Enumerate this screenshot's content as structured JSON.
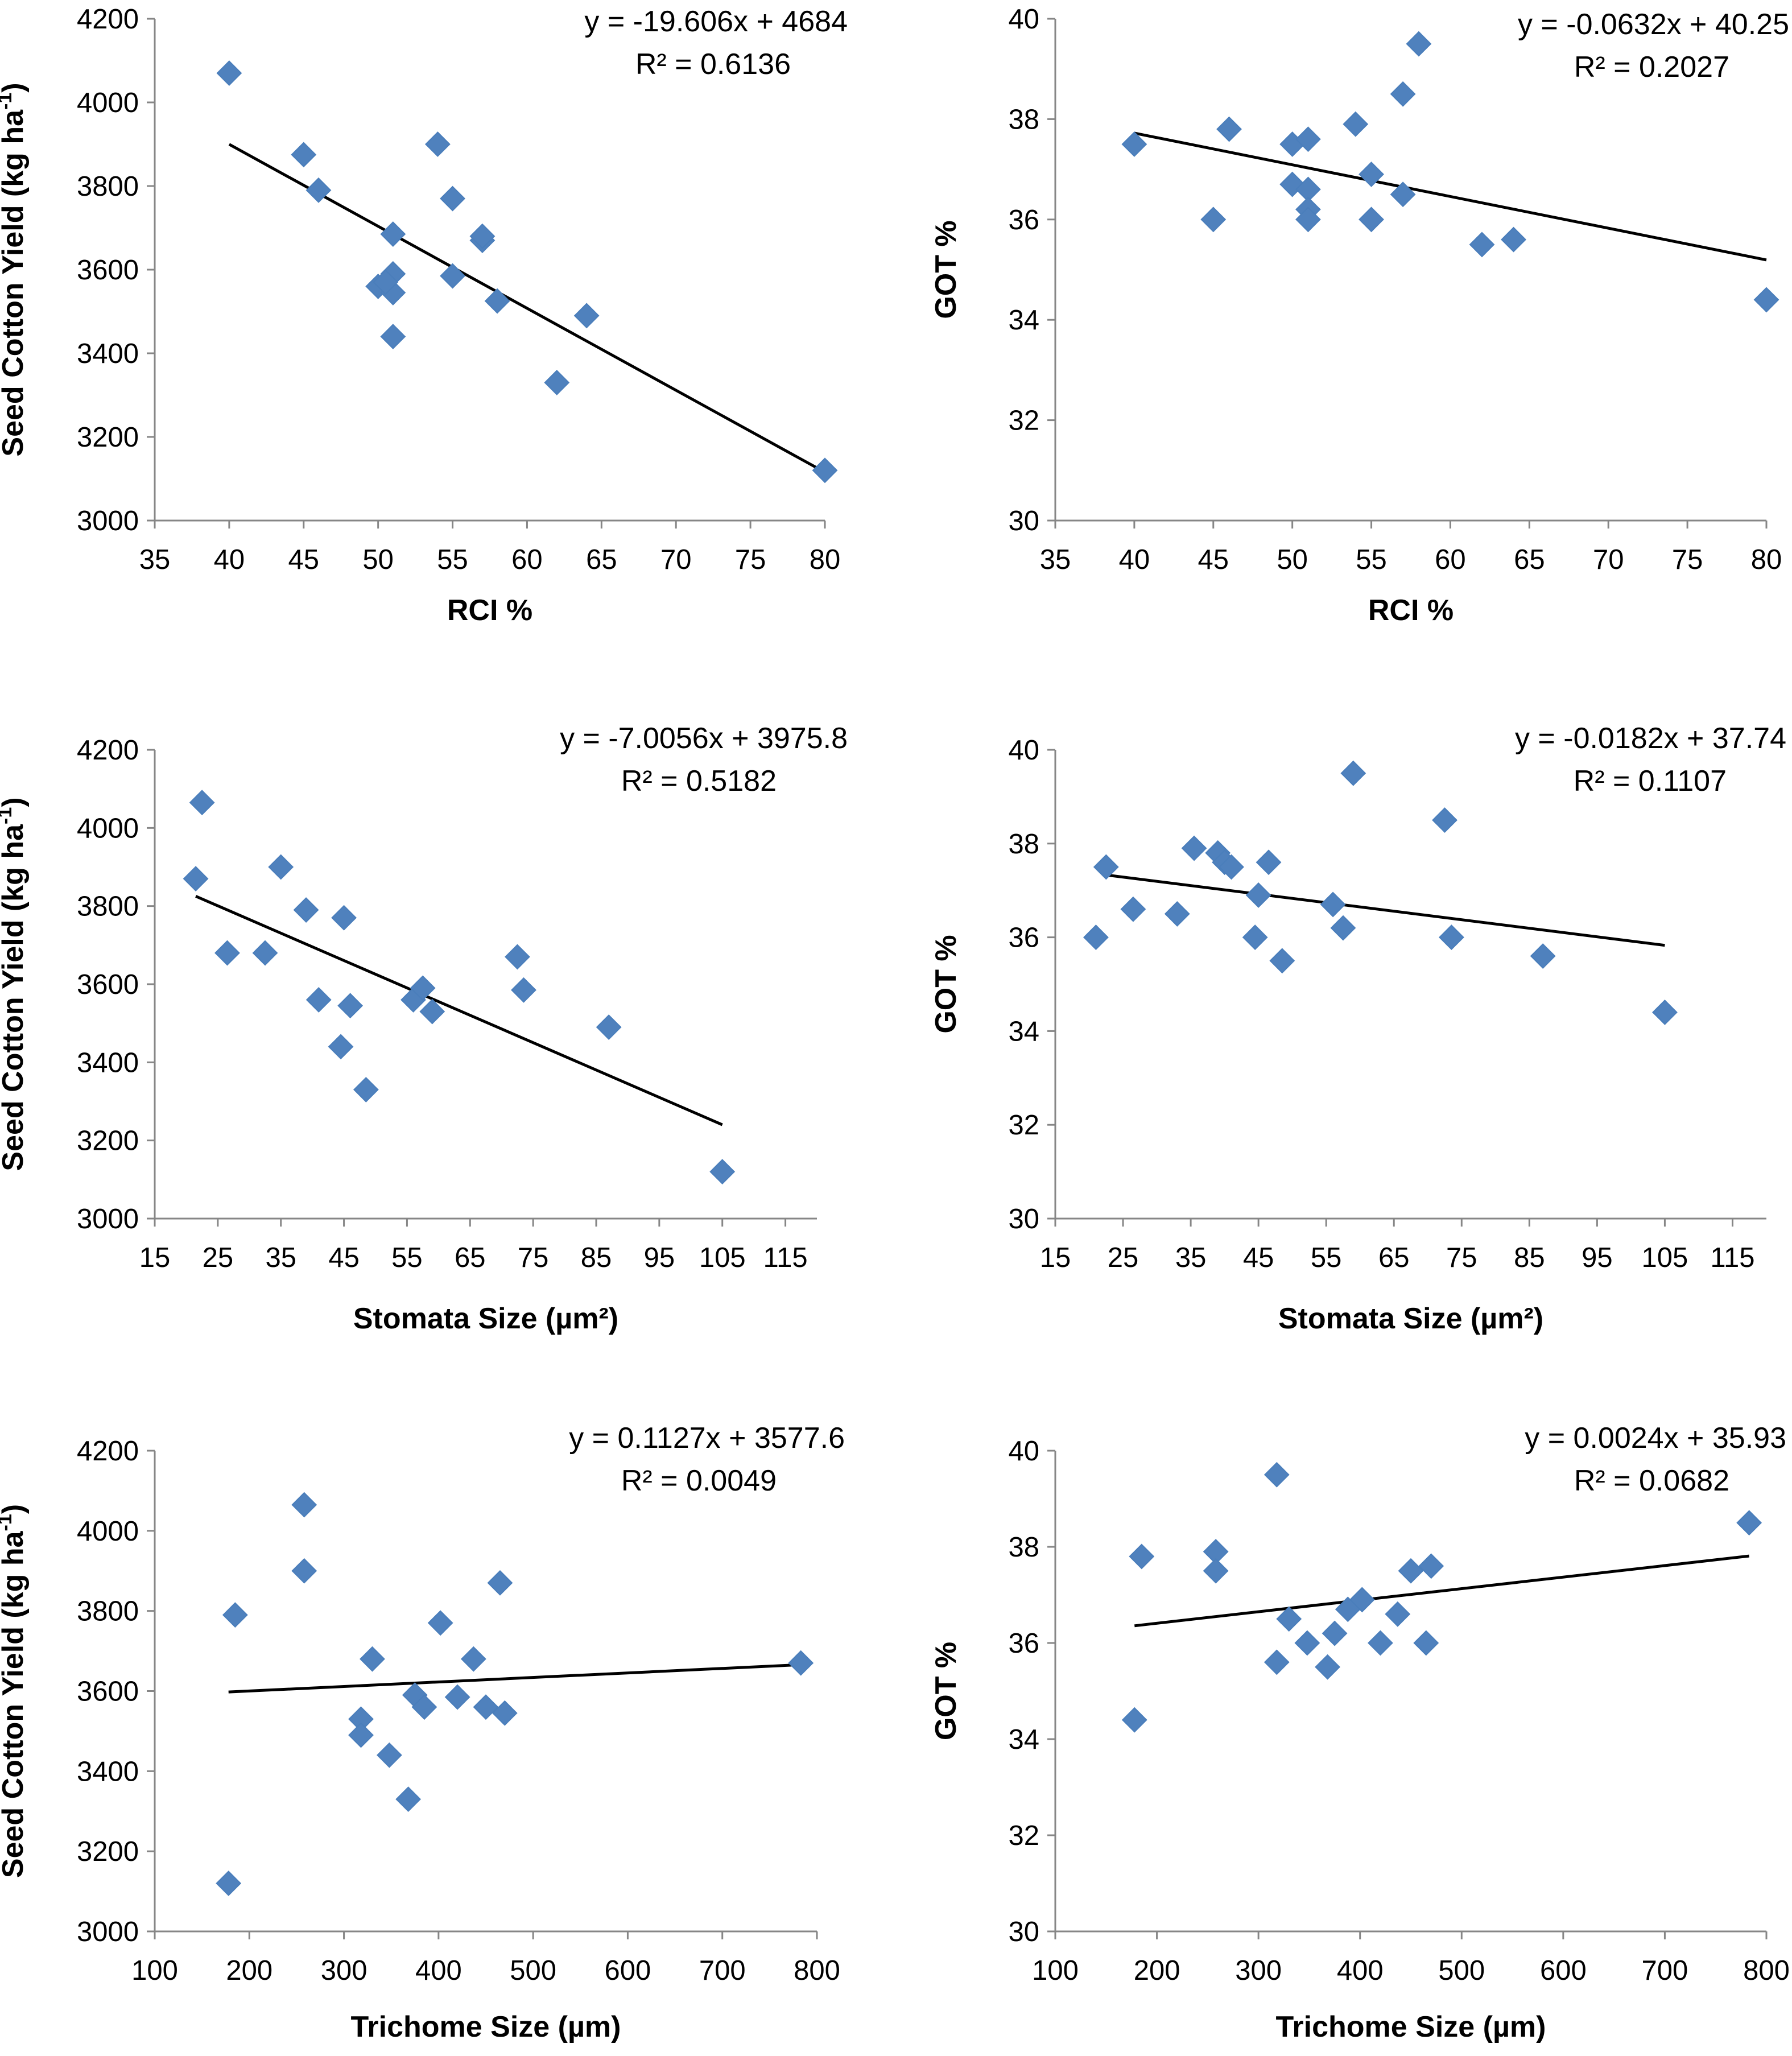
{
  "figure": {
    "accent": "#4f81bd",
    "marker_edge": "#4a7ebb",
    "axis_color": "#868686"
  },
  "chart_data": [
    {
      "type": "scatter",
      "id": "p1",
      "xlabel": "RCI %",
      "ylabel": "Seed Cotton Yield (kg ha",
      "ylabel_sup": "-1",
      "ylabel_tail": ")",
      "xlim": [
        35,
        80
      ],
      "xtick_step": 5,
      "ylim": [
        3000,
        4200
      ],
      "ytick_step": 200,
      "equation": "y = -19.606x + 4684",
      "r2": "R² = 0.6136",
      "trend": {
        "slope": -19.606,
        "intercept": 4684,
        "x_from": 40,
        "x_to": 80
      },
      "points": [
        [
          40,
          4070
        ],
        [
          45,
          3875
        ],
        [
          46,
          3790
        ],
        [
          51,
          3685
        ],
        [
          54,
          3900
        ],
        [
          55,
          3770
        ],
        [
          57,
          3670
        ],
        [
          57,
          3680
        ],
        [
          50,
          3560
        ],
        [
          51,
          3590
        ],
        [
          51,
          3545
        ],
        [
          50.5,
          3570
        ],
        [
          55,
          3585
        ],
        [
          58,
          3525
        ],
        [
          64,
          3490
        ],
        [
          51,
          3440
        ],
        [
          62,
          3330
        ],
        [
          80,
          3120
        ]
      ]
    },
    {
      "type": "scatter",
      "id": "p2",
      "xlabel": "RCI %",
      "ylabel": "GOT %",
      "xlim": [
        35,
        80
      ],
      "xtick_step": 5,
      "ylim": [
        30,
        40
      ],
      "ytick_step": 2,
      "equation": "y = -0.0632x + 40.25",
      "r2": "R² = 0.2027",
      "trend": {
        "slope": -0.0632,
        "intercept": 40.25,
        "x_from": 40,
        "x_to": 80
      },
      "points": [
        [
          40,
          37.5
        ],
        [
          45,
          36
        ],
        [
          46,
          37.8
        ],
        [
          50,
          37.5
        ],
        [
          51,
          37.6
        ],
        [
          50,
          36.7
        ],
        [
          51,
          36.6
        ],
        [
          51,
          36.2
        ],
        [
          51,
          36
        ],
        [
          54,
          37.9
        ],
        [
          55,
          36.9
        ],
        [
          55,
          36
        ],
        [
          57,
          38.5
        ],
        [
          57,
          36.5
        ],
        [
          58,
          39.5
        ],
        [
          62,
          35.5
        ],
        [
          64,
          35.6
        ],
        [
          80,
          34.4
        ]
      ]
    },
    {
      "type": "scatter",
      "id": "p3",
      "xlabel": "Stomata Size (µm²)",
      "ylabel": "Seed Cotton Yield (kg ha",
      "ylabel_sup": "-1",
      "ylabel_tail": ")",
      "xlim": [
        15,
        120
      ],
      "xtick_step": 10,
      "xtick_max": 115,
      "ylim": [
        3000,
        4200
      ],
      "ytick_step": 200,
      "equation": "y = -7.0056x + 3975.8",
      "r2": "R² = 0.5182",
      "trend": {
        "slope": -7.0056,
        "intercept": 3975.8,
        "x_from": 21.5,
        "x_to": 105
      },
      "points": [
        [
          21.5,
          3870
        ],
        [
          22.5,
          4065
        ],
        [
          26.5,
          3680
        ],
        [
          32.5,
          3680
        ],
        [
          35,
          3900
        ],
        [
          39,
          3790
        ],
        [
          41,
          3560
        ],
        [
          44.5,
          3440
        ],
        [
          45,
          3770
        ],
        [
          46,
          3545
        ],
        [
          48.5,
          3330
        ],
        [
          56,
          3560
        ],
        [
          57.5,
          3590
        ],
        [
          59,
          3530
        ],
        [
          72.5,
          3670
        ],
        [
          73.5,
          3585
        ],
        [
          87,
          3490
        ],
        [
          105,
          3120
        ]
      ]
    },
    {
      "type": "scatter",
      "id": "p4",
      "xlabel": "Stomata Size (µm²)",
      "ylabel": "GOT %",
      "xlim": [
        15,
        120
      ],
      "xtick_step": 10,
      "xtick_max": 115,
      "ylim": [
        30,
        40
      ],
      "ytick_step": 2,
      "equation": "y = -0.0182x + 37.74",
      "r2": "R² = 0.1107",
      "trend": {
        "slope": -0.0182,
        "intercept": 37.74,
        "x_from": 22.5,
        "x_to": 105
      },
      "points": [
        [
          21,
          36
        ],
        [
          22.5,
          37.5
        ],
        [
          26.5,
          36.6
        ],
        [
          33,
          36.5
        ],
        [
          35.5,
          37.9
        ],
        [
          39,
          37.8
        ],
        [
          40,
          37.6
        ],
        [
          41,
          37.5
        ],
        [
          44.5,
          36
        ],
        [
          45,
          36.9
        ],
        [
          46.5,
          37.6
        ],
        [
          48.5,
          35.5
        ],
        [
          56,
          36.7
        ],
        [
          57.5,
          36.2
        ],
        [
          59,
          39.5
        ],
        [
          72.5,
          38.5
        ],
        [
          73.5,
          36
        ],
        [
          87,
          35.6
        ],
        [
          105,
          34.4
        ]
      ]
    },
    {
      "type": "scatter",
      "id": "p5",
      "xlabel": "Trichome Size (µm)",
      "ylabel": "Seed Cotton Yield (kg ha",
      "ylabel_sup": "-1",
      "ylabel_tail": ")",
      "xlim": [
        100,
        800
      ],
      "xtick_step": 100,
      "ylim": [
        3000,
        4200
      ],
      "ytick_step": 200,
      "equation": "y = 0.1127x + 3577.6",
      "r2": "R² = 0.0049",
      "trend": {
        "slope": 0.1127,
        "intercept": 3577.6,
        "x_from": 178,
        "x_to": 783
      },
      "points": [
        [
          178,
          3120
        ],
        [
          185,
          3790
        ],
        [
          258,
          4065
        ],
        [
          258,
          3900
        ],
        [
          330,
          3680
        ],
        [
          318,
          3530
        ],
        [
          318,
          3490
        ],
        [
          348,
          3440
        ],
        [
          368,
          3330
        ],
        [
          375,
          3590
        ],
        [
          385,
          3560
        ],
        [
          402,
          3770
        ],
        [
          420,
          3585
        ],
        [
          437,
          3680
        ],
        [
          450,
          3560
        ],
        [
          465,
          3870
        ],
        [
          470,
          3545
        ],
        [
          783,
          3670
        ]
      ]
    },
    {
      "type": "scatter",
      "id": "p6",
      "xlabel": "Trichome Size (µm)",
      "ylabel": "GOT %",
      "xlim": [
        100,
        800
      ],
      "xtick_step": 100,
      "ylim": [
        30,
        40
      ],
      "ytick_step": 2,
      "equation": "y = 0.0024x + 35.93",
      "r2": "R² = 0.0682",
      "trend": {
        "slope": 0.0024,
        "intercept": 35.93,
        "x_from": 178,
        "x_to": 783
      },
      "points": [
        [
          178,
          34.4
        ],
        [
          185,
          37.8
        ],
        [
          258,
          37.9
        ],
        [
          258,
          37.5
        ],
        [
          318,
          39.5
        ],
        [
          318,
          35.6
        ],
        [
          330,
          36.5
        ],
        [
          348,
          36
        ],
        [
          368,
          35.5
        ],
        [
          375,
          36.2
        ],
        [
          388,
          36.7
        ],
        [
          402,
          36.9
        ],
        [
          420,
          36
        ],
        [
          437,
          36.6
        ],
        [
          450,
          37.5
        ],
        [
          465,
          36
        ],
        [
          470,
          37.6
        ],
        [
          783,
          38.5
        ]
      ]
    }
  ]
}
